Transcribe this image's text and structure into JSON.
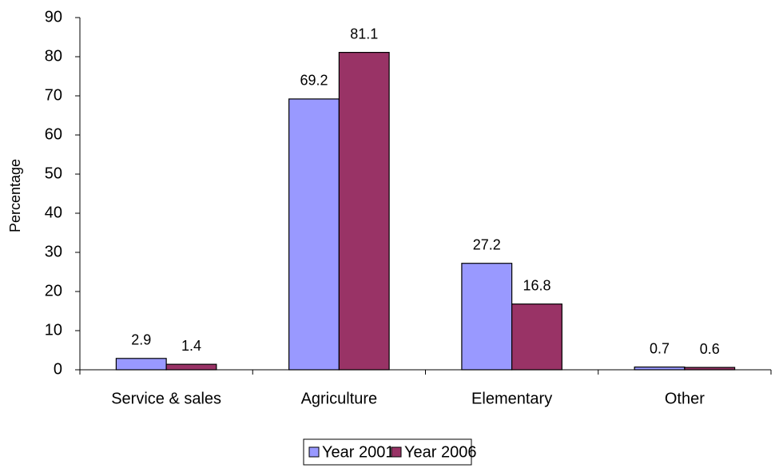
{
  "chart_data": {
    "type": "bar",
    "y_label": "Percentage",
    "categories": [
      "Service & sales",
      "Agriculture",
      "Elementary",
      "Other"
    ],
    "series": [
      {
        "name": "Year 2001",
        "color": "#9999ff",
        "values": [
          2.9,
          69.2,
          27.2,
          0.7
        ]
      },
      {
        "name": "Year 2006",
        "color": "#993366",
        "values": [
          1.4,
          81.1,
          16.8,
          0.6
        ]
      }
    ],
    "ylim": [
      0,
      90
    ],
    "yticks": [
      0,
      10,
      20,
      30,
      40,
      50,
      60,
      70,
      80,
      90
    ],
    "legend": "bottom"
  }
}
